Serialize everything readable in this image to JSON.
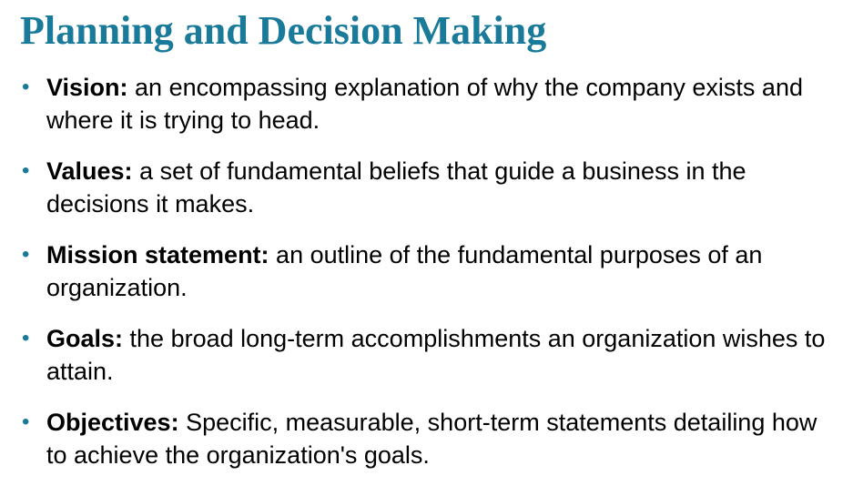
{
  "slide": {
    "title": "Planning and Decision Making",
    "bullet_marker": "•",
    "items": [
      {
        "term": "Vision:",
        "definition": " an encompassing explanation of why the company exists and where it is trying to head."
      },
      {
        "term": "Values:",
        "definition": " a set of fundamental beliefs that guide a business in the decisions it makes."
      },
      {
        "term": "Mission statement:",
        "definition": " an outline of the fundamental purposes of an organization."
      },
      {
        "term": "Goals:",
        "definition": " the broad long-term accomplishments an organization wishes to attain."
      },
      {
        "term": "Objectives:",
        "definition": " Specific, measurable, short-term statements detailing how to achieve the organization's goals."
      }
    ]
  },
  "colors": {
    "title": "#1a7a99",
    "bullet": "#1a7a99",
    "body_text": "#000000",
    "background": "#ffffff"
  }
}
